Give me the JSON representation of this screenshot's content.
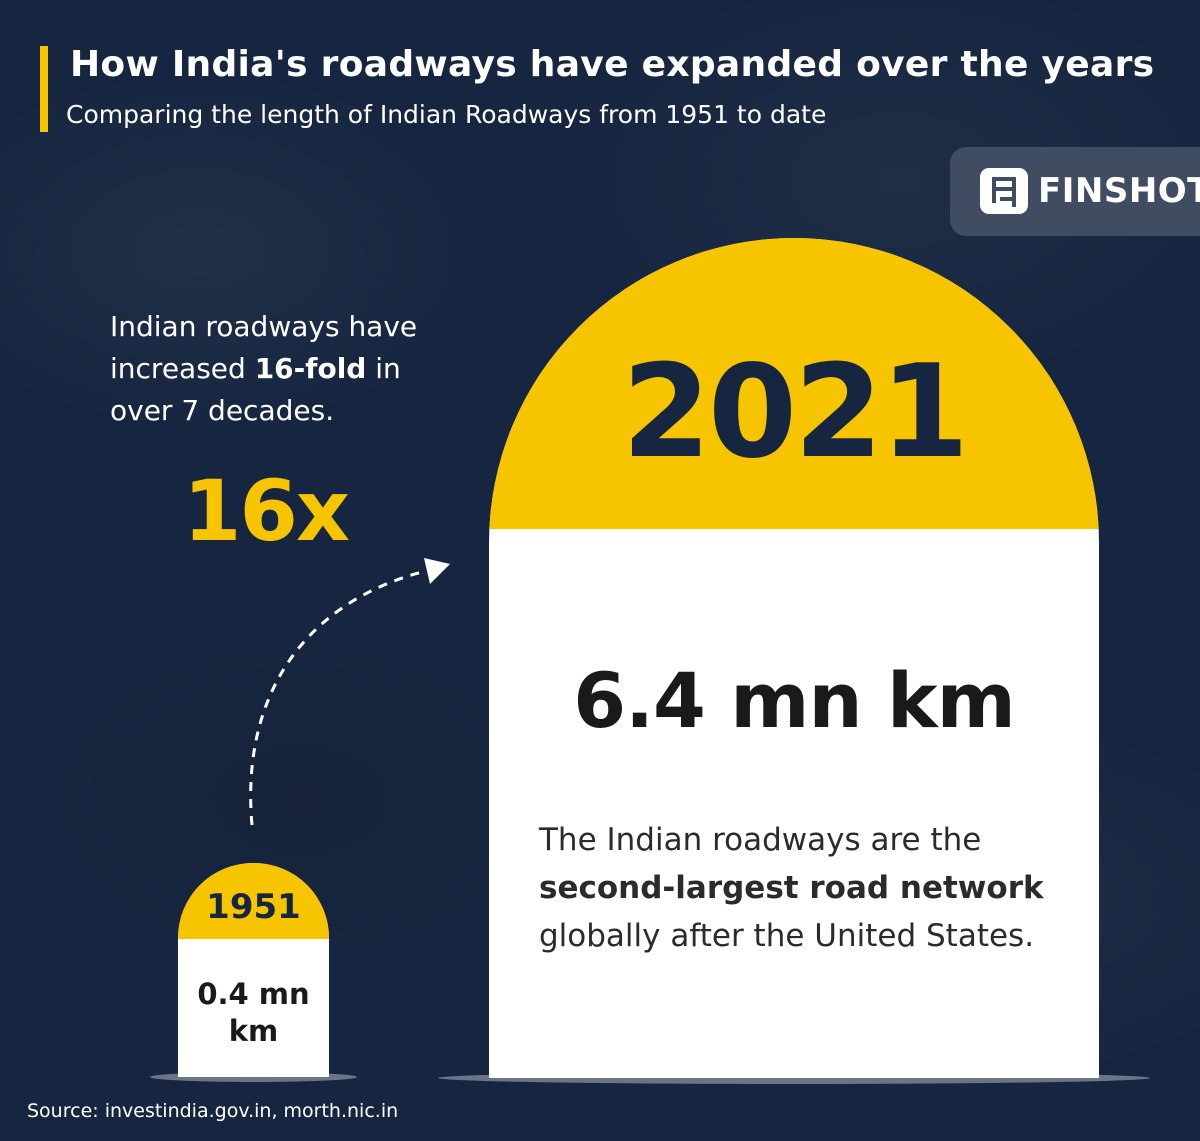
{
  "header": {
    "title": "How India's roadways have expanded over the years",
    "subtitle": "Comparing the length of Indian Roadways from 1951 to date"
  },
  "brand": {
    "name": "FINSHOTS",
    "logo_icon": "finshots-logo-icon"
  },
  "note": {
    "line1": "Indian roadways have",
    "line2_pre": "increased ",
    "line2_bold": "16-fold",
    "line2_post": " in",
    "line3": "over 7 decades."
  },
  "multiplier": "16x",
  "milestone_1951": {
    "year": "1951",
    "value_line1": "0.4 mn",
    "value_line2": "km"
  },
  "milestone_2021": {
    "year": "2021",
    "value": "6.4 mn km",
    "fact_line1": "The Indian roadways are the",
    "fact_bold": "second-largest road network",
    "fact_line3": "globally after the United States."
  },
  "source": "Source: investindia.gov.in, morth.nic.in",
  "colors": {
    "background": "#172640",
    "accent": "#f7c500",
    "stone": "#ffffff",
    "brand_box": "#3f4c61"
  }
}
